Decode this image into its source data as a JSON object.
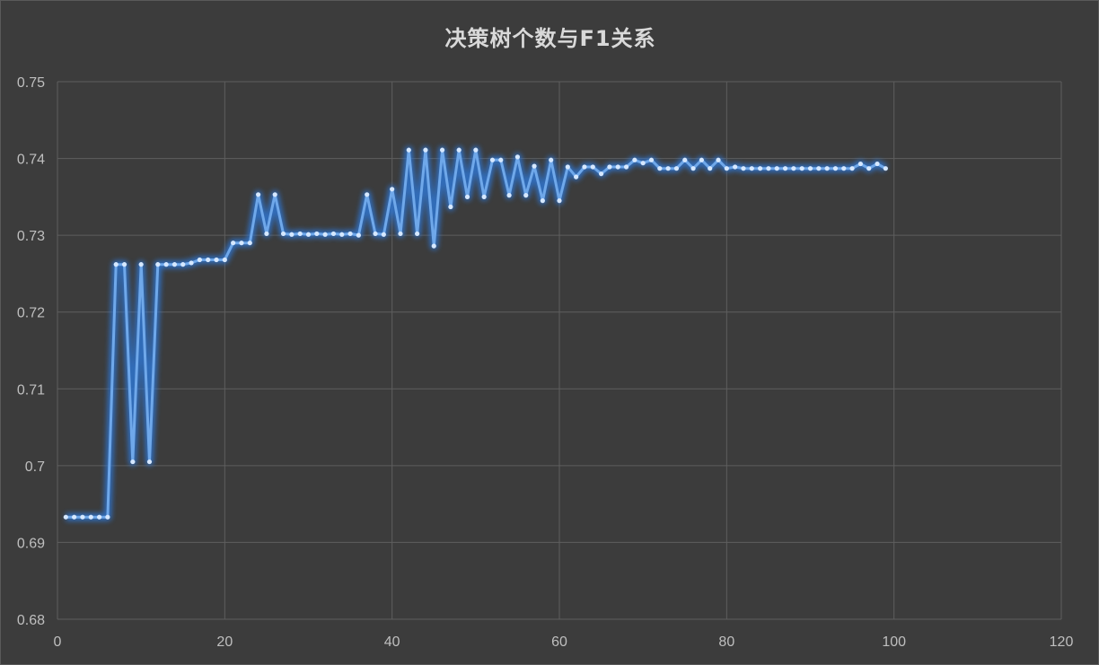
{
  "chart_data": {
    "type": "line",
    "title": "决策树个数与F1关系",
    "xlabel": "",
    "ylabel": "",
    "xlim": [
      0,
      120
    ],
    "ylim": [
      0.68,
      0.75
    ],
    "x_ticks": [
      0,
      20,
      40,
      60,
      80,
      100,
      120
    ],
    "y_ticks": [
      0.68,
      0.69,
      0.7,
      0.71,
      0.72,
      0.73,
      0.74,
      0.75
    ],
    "x_tick_labels": [
      "0",
      "20",
      "40",
      "60",
      "80",
      "100",
      "120"
    ],
    "y_tick_labels": [
      "0.68",
      "0.69",
      "0.7",
      "0.71",
      "0.72",
      "0.73",
      "0.74",
      "0.75"
    ],
    "grid": true,
    "legend": "none",
    "colors": {
      "background": "#3c3c3c",
      "grid": "#5e5e5e",
      "line": "#6fa8ea",
      "glow": "#2f78d8",
      "marker": "#d6e8ff",
      "text": "#bfbfbf"
    },
    "series": [
      {
        "x": [
          1,
          2,
          3,
          4,
          5,
          6,
          7,
          8,
          9,
          10,
          11,
          12,
          13,
          14,
          15,
          16,
          17,
          18,
          19,
          20,
          21,
          22,
          23,
          24,
          25,
          26,
          27,
          28,
          29,
          30,
          31,
          32,
          33,
          34,
          35,
          36,
          37,
          38,
          39,
          40,
          41,
          42,
          43,
          44,
          45,
          46,
          47,
          48,
          49,
          50,
          51,
          52,
          53,
          54,
          55,
          56,
          57,
          58,
          59,
          60,
          61,
          62,
          63,
          64,
          65,
          66,
          67,
          68,
          69,
          70,
          71,
          72,
          73,
          74,
          75,
          76,
          77,
          78,
          79,
          80,
          81,
          82,
          83,
          84,
          85,
          86,
          87,
          88,
          89,
          90,
          91,
          92,
          93,
          94,
          95,
          96,
          97,
          98,
          99
        ],
        "values": [
          0.6933,
          0.6933,
          0.6933,
          0.6933,
          0.6933,
          0.6933,
          0.7262,
          0.7262,
          0.7005,
          0.7262,
          0.7005,
          0.7262,
          0.7262,
          0.7262,
          0.7262,
          0.7264,
          0.7268,
          0.7268,
          0.7268,
          0.7268,
          0.729,
          0.729,
          0.729,
          0.7353,
          0.7302,
          0.7353,
          0.7302,
          0.7301,
          0.7302,
          0.7301,
          0.7302,
          0.7301,
          0.7302,
          0.7301,
          0.7302,
          0.73,
          0.7353,
          0.7302,
          0.7301,
          0.736,
          0.7302,
          0.7411,
          0.7302,
          0.7411,
          0.7286,
          0.7411,
          0.7337,
          0.7411,
          0.735,
          0.7411,
          0.735,
          0.7398,
          0.7398,
          0.7352,
          0.7402,
          0.7352,
          0.739,
          0.7345,
          0.7398,
          0.7345,
          0.7389,
          0.7376,
          0.7389,
          0.7389,
          0.738,
          0.7389,
          0.7389,
          0.7389,
          0.7398,
          0.7394,
          0.7398,
          0.7387,
          0.7387,
          0.7387,
          0.7398,
          0.7387,
          0.7398,
          0.7387,
          0.7398,
          0.7387,
          0.7389,
          0.7387,
          0.7387,
          0.7387,
          0.7387,
          0.7387,
          0.7387,
          0.7387,
          0.7387,
          0.7387,
          0.7387,
          0.7387,
          0.7387,
          0.7387,
          0.7387,
          0.7393,
          0.7387,
          0.7393,
          0.7387
        ]
      }
    ]
  }
}
